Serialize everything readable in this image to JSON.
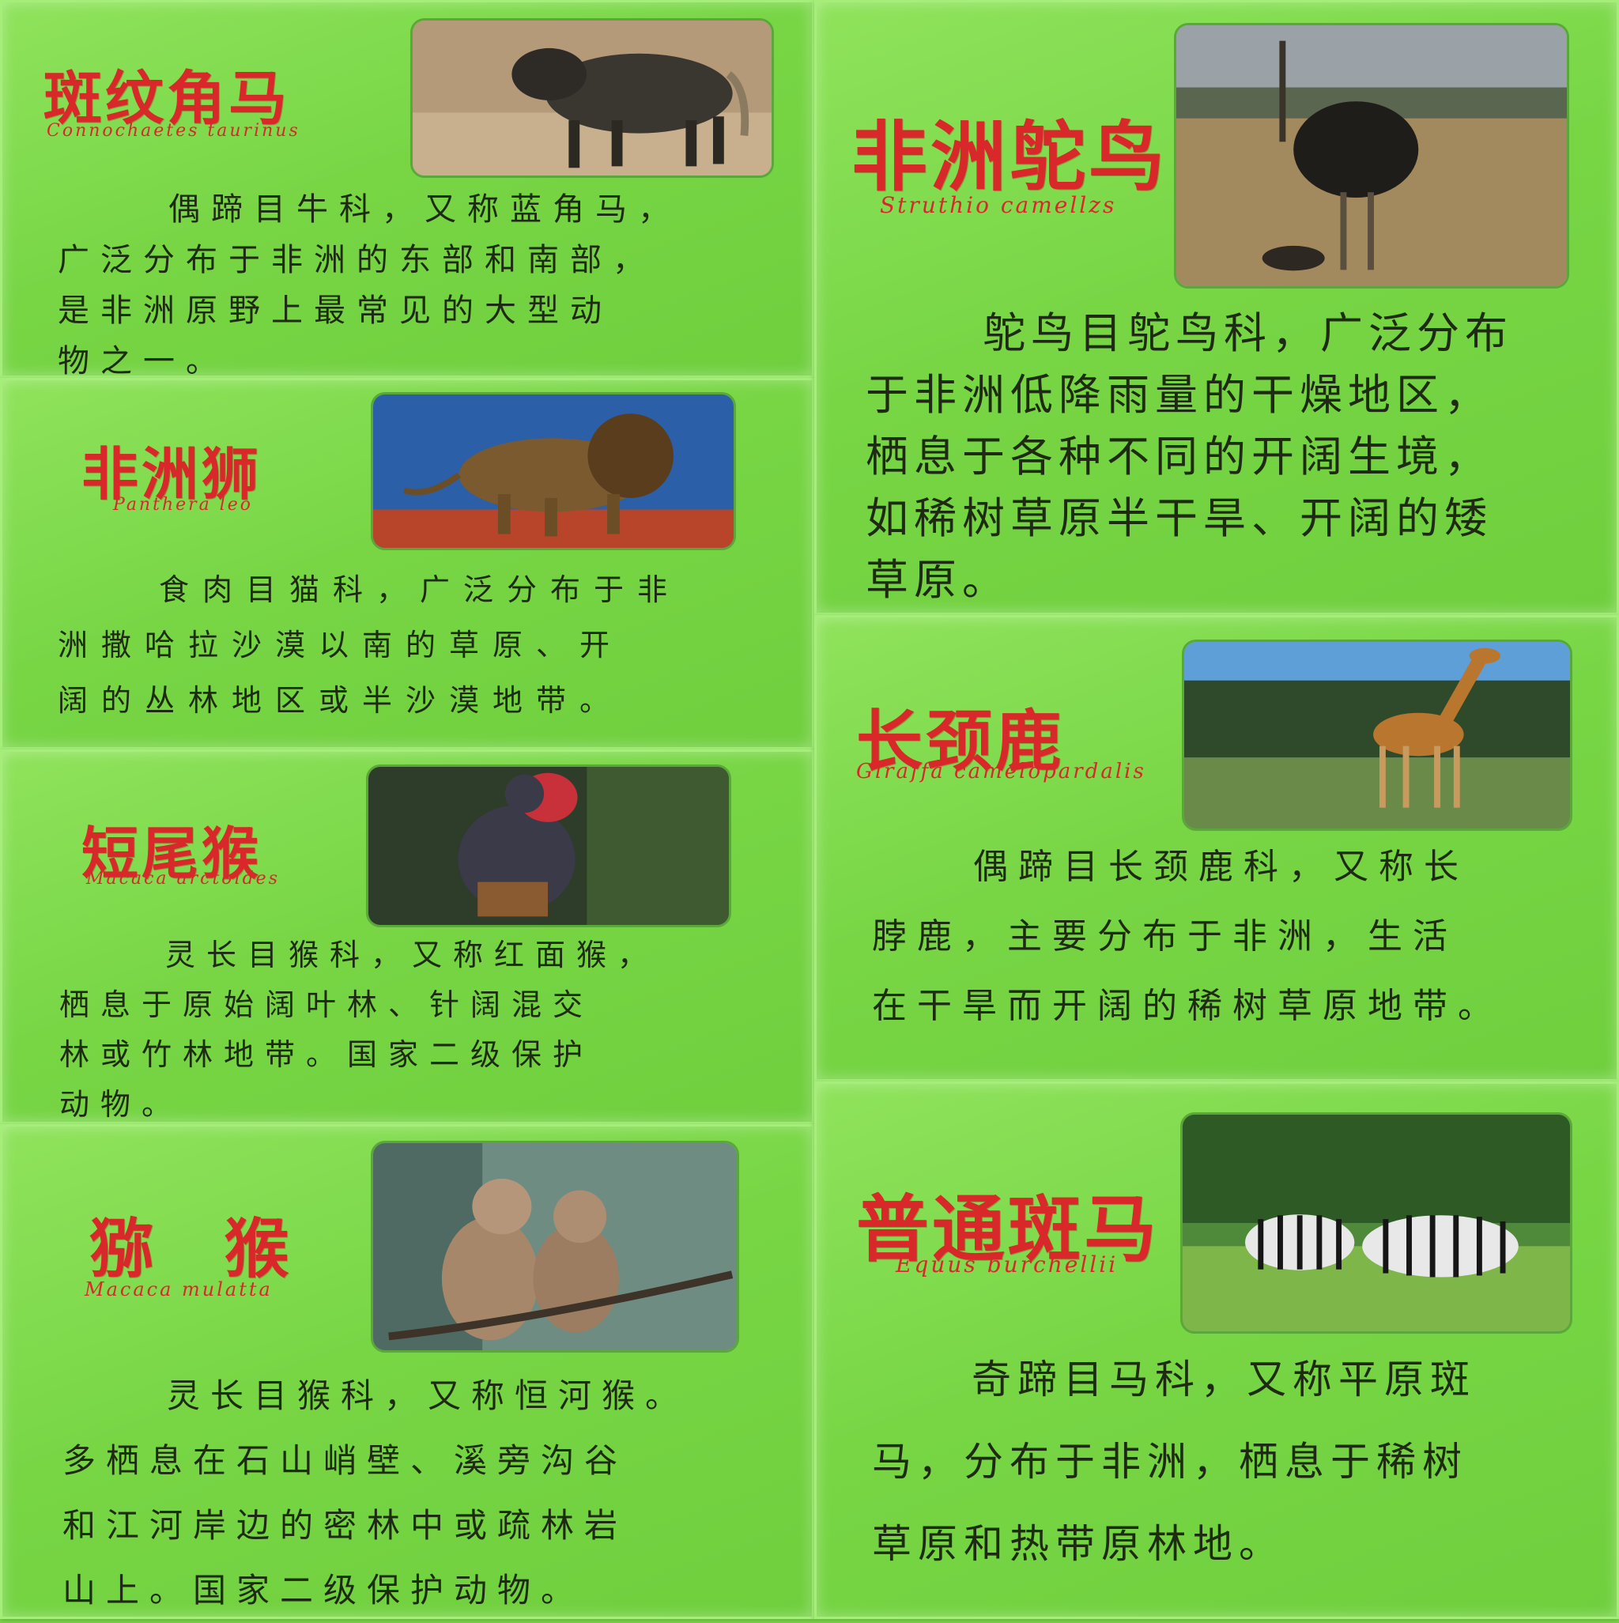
{
  "cards": [
    {
      "title": "斑纹角马",
      "sci": "Connochaetes taurinus",
      "lines": [
        "偶蹄目牛科，又称蓝角马，",
        "广泛分布于非洲的东部和南部，",
        "是非洲原野上最常见的大型动",
        "物之一。"
      ]
    },
    {
      "title": "非洲狮",
      "sci": "Panthera leo",
      "lines": [
        "食肉目猫科，广泛分布于非",
        "洲撒哈拉沙漠以南的草原、开",
        "阔的丛林地区或半沙漠地带。"
      ]
    },
    {
      "title": "短尾猴",
      "sci": "Macaca arctoides",
      "lines": [
        "灵长目猴科，又称红面猴，",
        "栖息于原始阔叶林、针阔混交",
        "林或竹林地带。国家二级保护",
        "动物。"
      ]
    },
    {
      "title": "猕 猴",
      "sci": "Macaca mulatta",
      "lines": [
        "灵长目猴科，又称恒河猴。",
        "多栖息在石山峭壁、溪旁沟谷",
        "和江河岸边的密林中或疏林岩",
        "山上。国家二级保护动物。"
      ]
    },
    {
      "title": "非洲鸵鸟",
      "sci": "Struthio camellzs",
      "lines": [
        "鸵鸟目鸵鸟科，广泛分布",
        "于非洲低降雨量的干燥地区，",
        "栖息于各种不同的开阔生境，",
        "如稀树草原半干旱、开阔的矮",
        "草原。"
      ]
    },
    {
      "title": "长颈鹿",
      "sci": "Giraffa camelopardalis",
      "lines": [
        "偶蹄目长颈鹿科，又称长",
        "脖鹿，主要分布于非洲，生活",
        "在干旱而开阔的稀树草原地带。"
      ]
    },
    {
      "title": "普通斑马",
      "sci": "Equus burchellii",
      "lines": [
        "奇蹄目马科，又称平原斑",
        "马，分布于非洲，栖息于稀树",
        "草原和热带原林地。"
      ]
    }
  ]
}
